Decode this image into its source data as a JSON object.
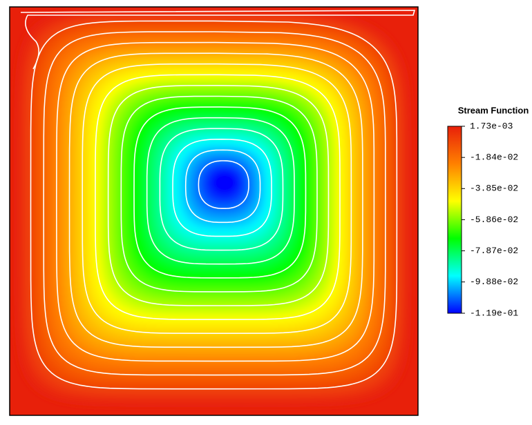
{
  "chart_data": {
    "type": "contour",
    "title": "Stream Function",
    "colormap": [
      "#0000ff",
      "#00ffff",
      "#00ff00",
      "#ffff00",
      "#ff8000",
      "#e8200a"
    ],
    "clim": [
      -0.119,
      0.00173
    ],
    "cticks": [
      {
        "value": 0.00173,
        "label": "1.73e-03"
      },
      {
        "value": -0.0184,
        "label": "-1.84e-02"
      },
      {
        "value": -0.0385,
        "label": "-3.85e-02"
      },
      {
        "value": -0.0586,
        "label": "-5.86e-02"
      },
      {
        "value": -0.0787,
        "label": "-7.87e-02"
      },
      {
        "value": -0.0988,
        "label": "-9.88e-02"
      },
      {
        "value": -0.119,
        "label": "-1.19e-01"
      }
    ]
  }
}
